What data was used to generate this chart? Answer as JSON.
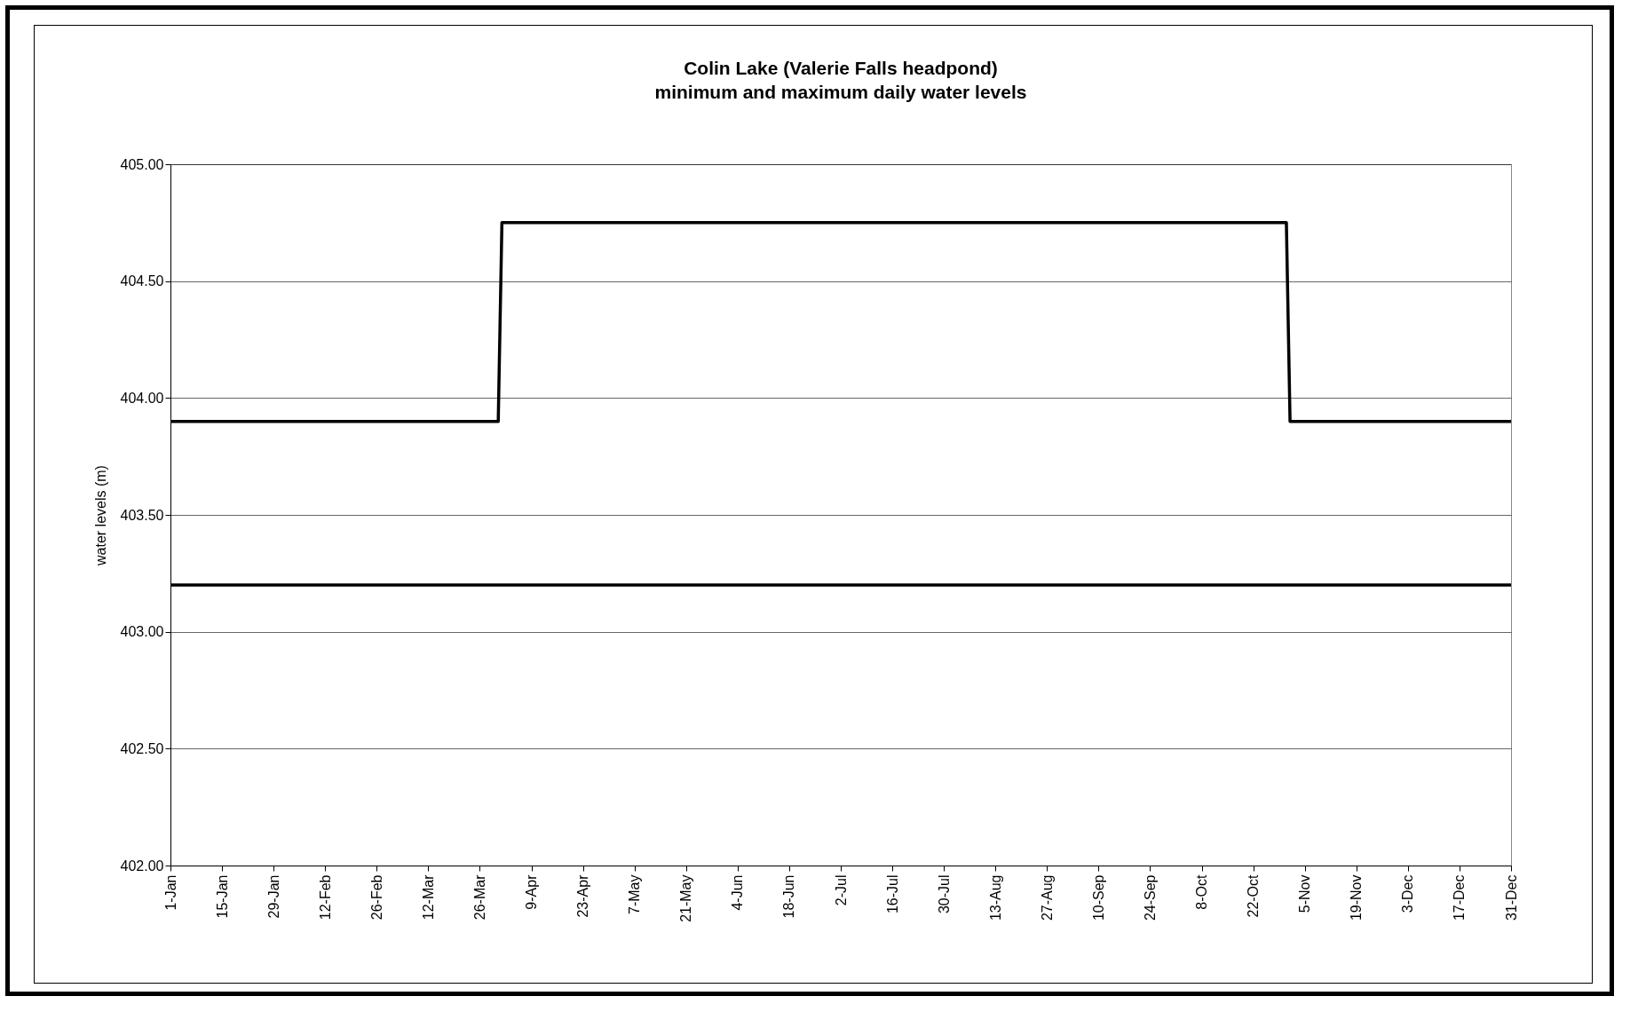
{
  "chart_data": {
    "type": "line",
    "title": "Colin Lake (Valerie Falls headpond)",
    "subtitle": "minimum and maximum daily water levels",
    "ylabel": "water levels (m)",
    "series": [
      {
        "color": "#000000",
        "x": [
          "--01-01",
          "--03-31",
          "--04-01",
          "--10-31",
          "--11-01",
          "--12-31"
        ],
        "values": [
          403.9,
          403.9,
          404.75,
          404.75,
          403.9,
          403.9
        ]
      },
      {
        "color": "#000000",
        "x": [
          "--01-01",
          "--12-31"
        ],
        "values": [
          403.2,
          403.2
        ]
      }
    ],
    "xlim": [
      "--01-01",
      "--12-31"
    ],
    "xticks": [
      {
        "value": "--01-01",
        "label": "1-Jan"
      },
      {
        "value": "--01-15",
        "label": "15-Jan"
      },
      {
        "value": "--01-29",
        "label": "29-Jan"
      },
      {
        "value": "--02-12",
        "label": "12-Feb"
      },
      {
        "value": "--02-26",
        "label": "26-Feb"
      },
      {
        "value": "--03-12",
        "label": "12-Mar"
      },
      {
        "value": "--03-26",
        "label": "26-Mar"
      },
      {
        "value": "--04-09",
        "label": "9-Apr"
      },
      {
        "value": "--04-23",
        "label": "23-Apr"
      },
      {
        "value": "--05-07",
        "label": "7-May"
      },
      {
        "value": "--05-21",
        "label": "21-May"
      },
      {
        "value": "--06-04",
        "label": "4-Jun"
      },
      {
        "value": "--06-18",
        "label": "18-Jun"
      },
      {
        "value": "--07-02",
        "label": "2-Jul"
      },
      {
        "value": "--07-16",
        "label": "16-Jul"
      },
      {
        "value": "--07-30",
        "label": "30-Jul"
      },
      {
        "value": "--08-13",
        "label": "13-Aug"
      },
      {
        "value": "--08-27",
        "label": "27-Aug"
      },
      {
        "value": "--09-10",
        "label": "10-Sep"
      },
      {
        "value": "--09-24",
        "label": "24-Sep"
      },
      {
        "value": "--10-08",
        "label": "8-Oct"
      },
      {
        "value": "--10-22",
        "label": "22-Oct"
      },
      {
        "value": "--11-05",
        "label": "5-Nov"
      },
      {
        "value": "--11-19",
        "label": "19-Nov"
      },
      {
        "value": "--12-03",
        "label": "3-Dec"
      },
      {
        "value": "--12-17",
        "label": "17-Dec"
      },
      {
        "value": "--12-31",
        "label": "31-Dec"
      }
    ],
    "ylim": [
      402,
      405
    ],
    "yticks": [
      {
        "value": 402,
        "label": "402.00"
      },
      {
        "value": 402.5,
        "label": "402.50"
      },
      {
        "value": 403,
        "label": "403.00"
      },
      {
        "value": 403.5,
        "label": "403.50"
      },
      {
        "value": 404,
        "label": "404.00"
      },
      {
        "value": 404.5,
        "label": "404.50"
      },
      {
        "value": 405,
        "label": "405.00"
      }
    ],
    "grid": "y",
    "marker": "none",
    "line_style": "solid"
  }
}
